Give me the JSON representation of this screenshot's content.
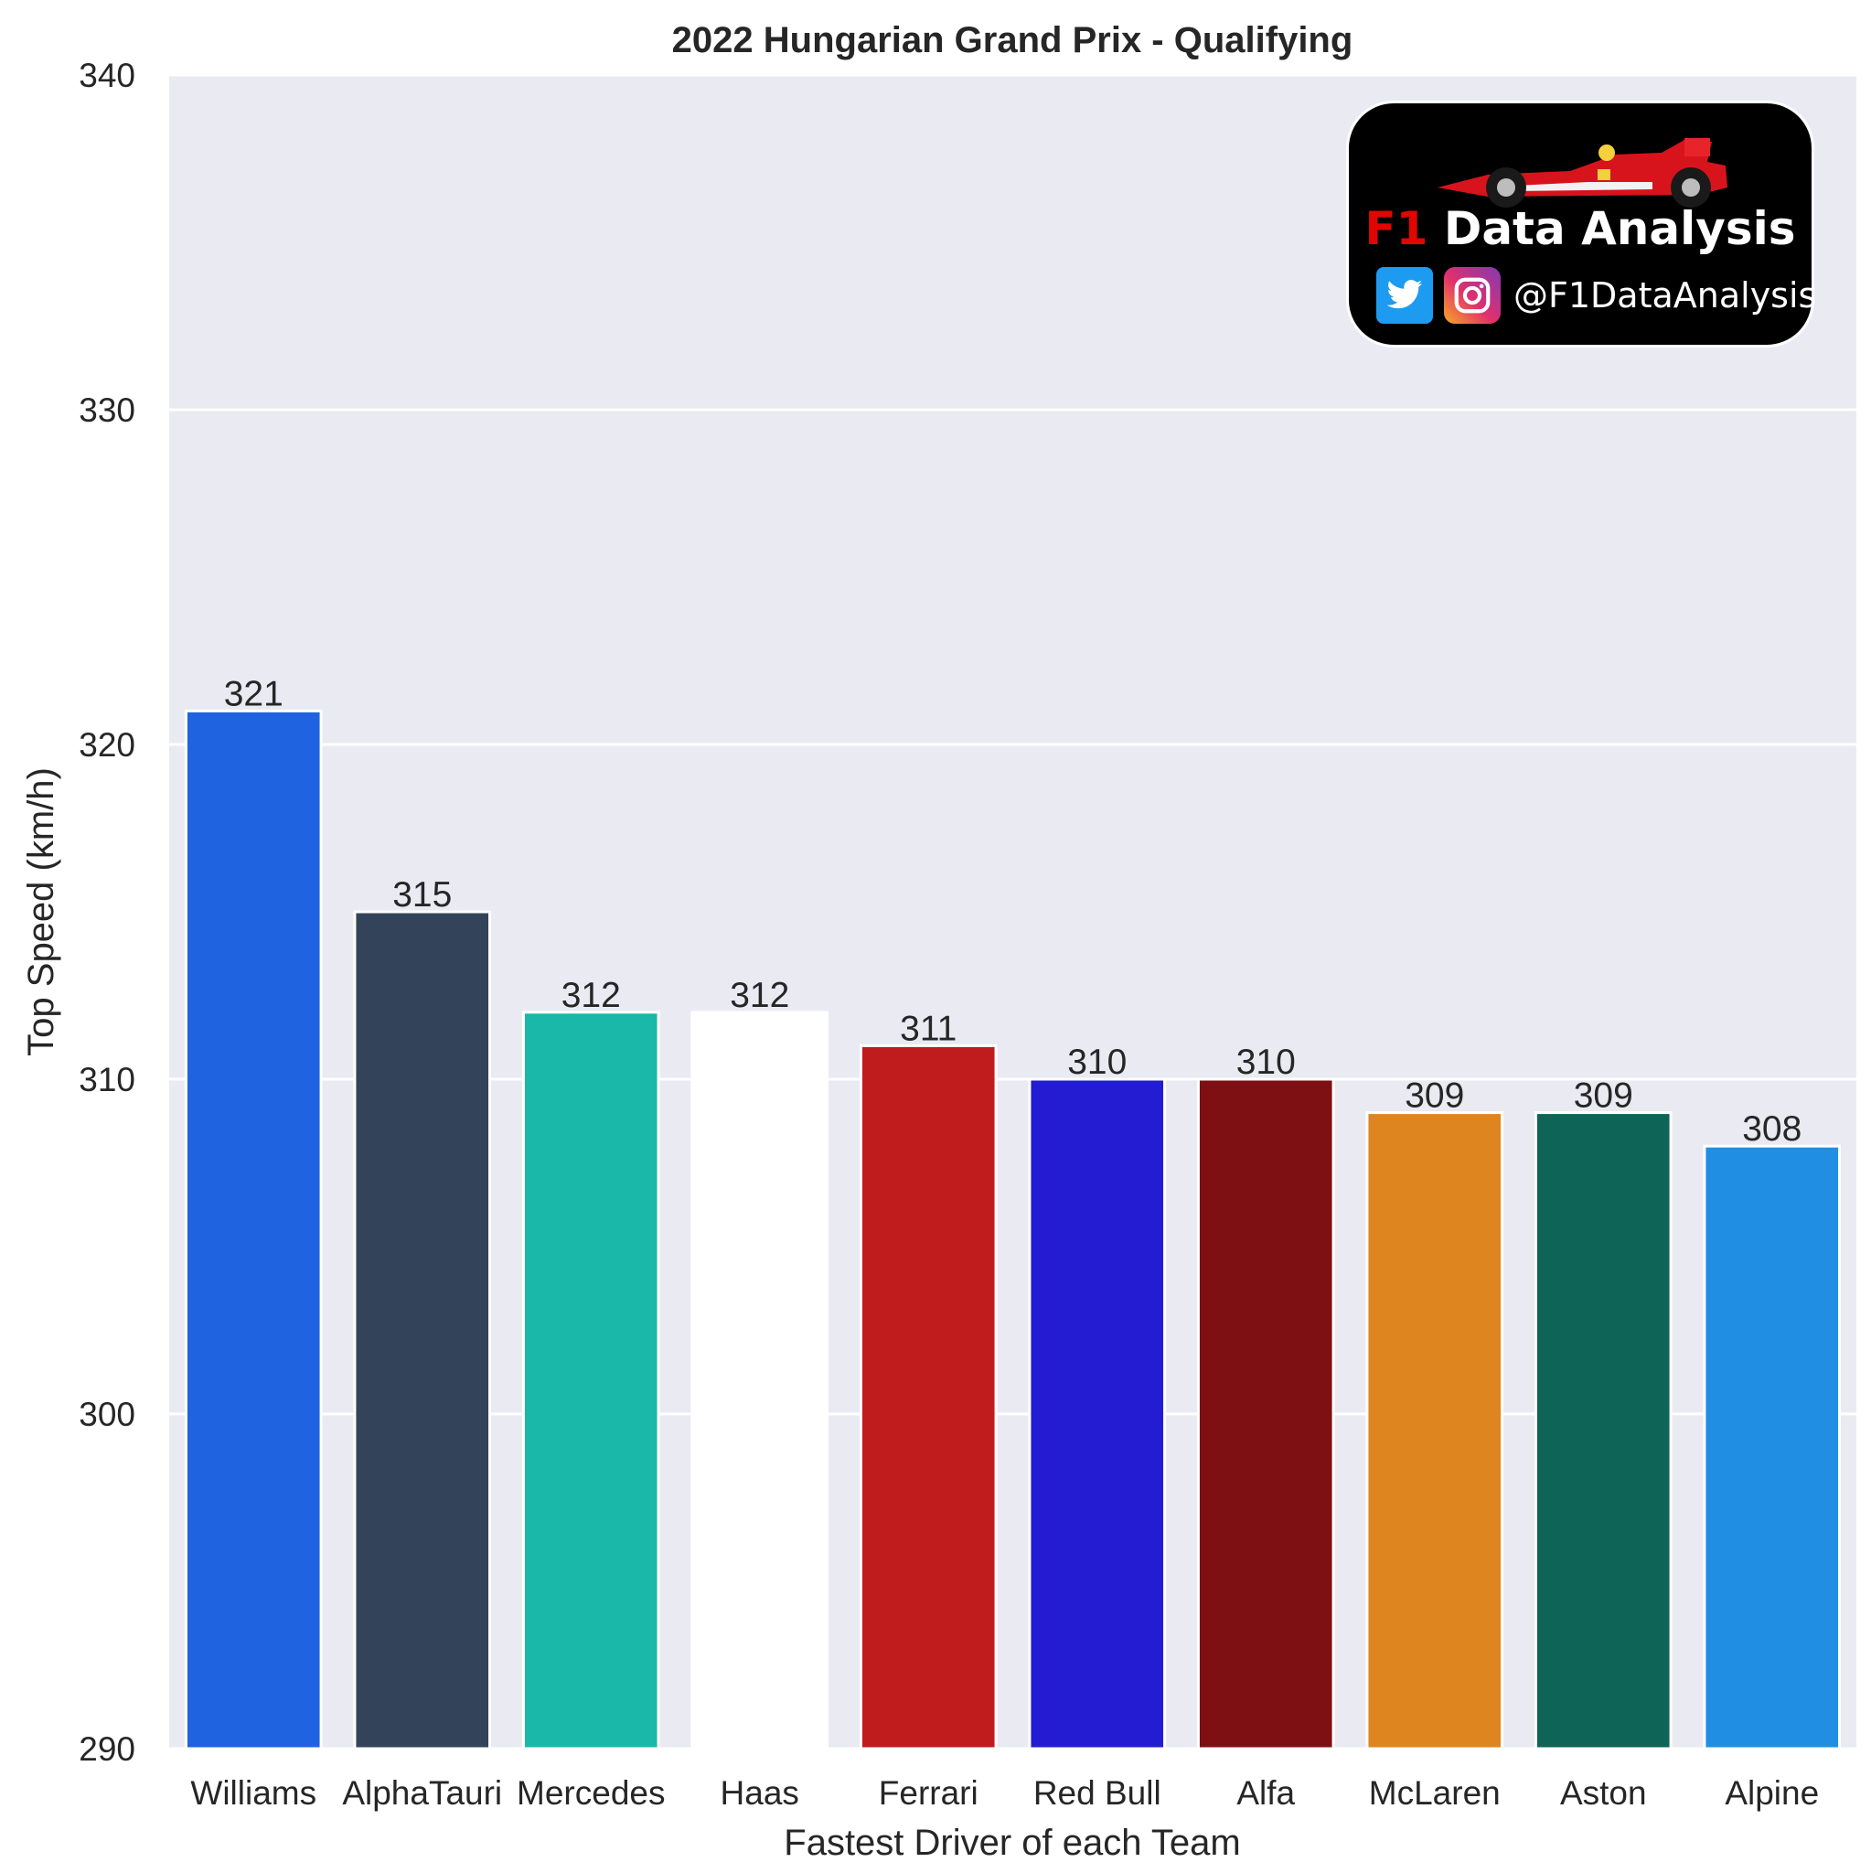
{
  "chart_data": {
    "type": "bar",
    "title": "2022 Hungarian Grand Prix - Qualifying",
    "xlabel": "Fastest Driver of each Team",
    "ylabel": "Top Speed (km/h)",
    "ylim": [
      290,
      340
    ],
    "yticks": [
      "290",
      "300",
      "310",
      "320",
      "330",
      "340"
    ],
    "grid": true,
    "categories": [
      "Williams",
      "AlphaTauri",
      "Mercedes",
      "Haas",
      "Ferrari",
      "Red Bull",
      "Alfa",
      "McLaren",
      "Aston",
      "Alpine"
    ],
    "values": [
      321,
      315,
      312,
      312,
      311,
      310,
      310,
      309,
      309,
      308
    ],
    "colors": [
      "#2063e0",
      "#33445a",
      "#1ab8a8",
      "#ffffff",
      "#c01c1e",
      "#231cd2",
      "#7e1013",
      "#de8520",
      "#0e6456",
      "#208ee2"
    ],
    "value_labels": [
      "321",
      "315",
      "312",
      "312",
      "311",
      "310",
      "310",
      "309",
      "309",
      "308"
    ]
  },
  "logo": {
    "brand_prefix": "F1",
    "brand_rest": " Data Analysis",
    "handle": "@F1DataAnalysis",
    "icons": [
      "twitter-icon",
      "instagram-icon",
      "f1-car-icon"
    ]
  }
}
